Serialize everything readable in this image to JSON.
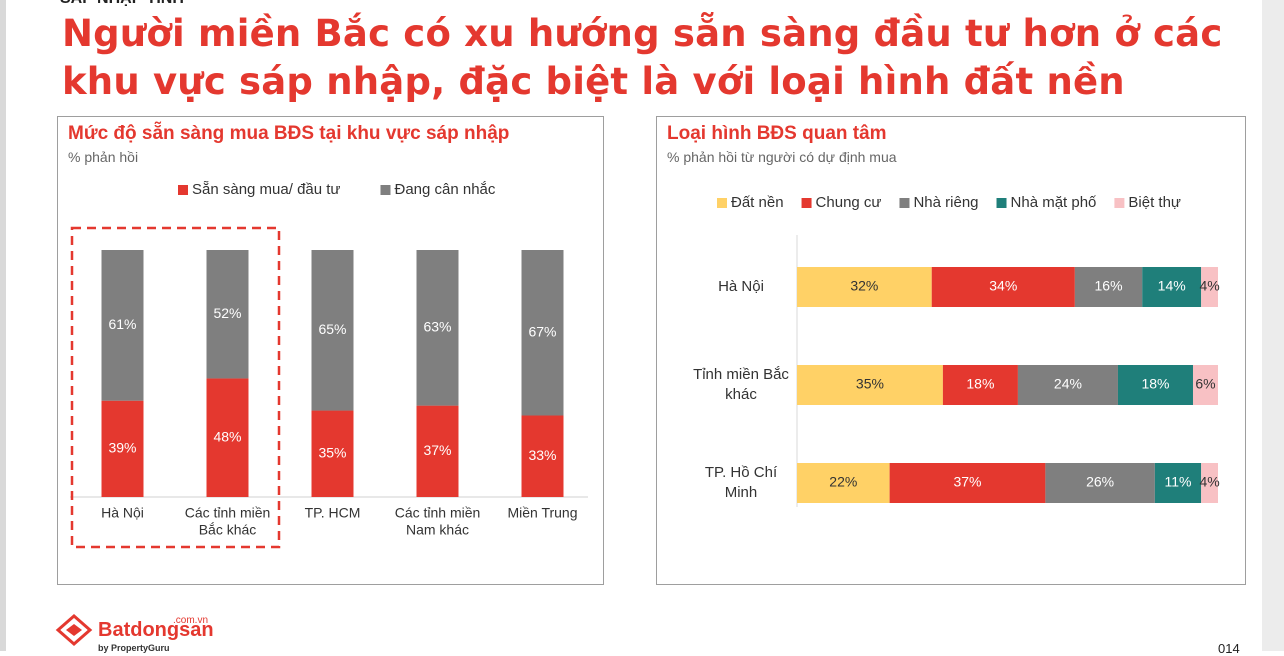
{
  "header": {
    "top_cut_text": "SÁP NHẬP TỈNH",
    "headline": "Người miền Bắc có xu hướng sẵn sàng đầu tư hơn ở các khu vực sáp nhập, đặc biệt là với loại hình đất nền"
  },
  "chart_data": [
    {
      "type": "bar",
      "stacked": true,
      "orientation": "vertical",
      "title": "Mức độ sẵn sàng mua BĐS tại khu vực sáp nhập",
      "subtitle": "% phản hồi",
      "legend_position": "top",
      "categories": [
        [
          "Hà Nội"
        ],
        [
          "Các tỉnh miền",
          "Bắc khác"
        ],
        [
          "TP. HCM"
        ],
        [
          "Các tỉnh miền",
          "Nam khác"
        ],
        [
          "Miền Trung"
        ]
      ],
      "series": [
        {
          "name": "Sẵn sàng mua/ đầu tư",
          "color": "#e4382f",
          "label_color": "#ffffff",
          "values": [
            39,
            48,
            35,
            37,
            33
          ]
        },
        {
          "name": "Đang cân nhắc",
          "color": "#7f7f7f",
          "label_color": "#ffffff",
          "values": [
            61,
            52,
            65,
            63,
            67
          ]
        }
      ],
      "value_suffix": "%",
      "highlight_categories": [
        0,
        1
      ],
      "highlight_color": "#e4382f"
    },
    {
      "type": "bar",
      "stacked": true,
      "orientation": "horizontal",
      "title": "Loại hình BĐS quan tâm",
      "subtitle": "% phản hồi từ người có dự định mua",
      "legend_position": "top",
      "categories": [
        [
          "Hà Nội"
        ],
        [
          "Tỉnh miền Bắc",
          "khác"
        ],
        [
          "TP. Hồ Chí",
          "Minh"
        ]
      ],
      "series": [
        {
          "name": "Đất nền",
          "color": "#ffd166",
          "label_color": "#333333",
          "values": [
            32,
            35,
            22
          ]
        },
        {
          "name": "Chung cư",
          "color": "#e4382f",
          "label_color": "#ffffff",
          "values": [
            34,
            18,
            37
          ]
        },
        {
          "name": "Nhà riêng",
          "color": "#7f7f7f",
          "label_color": "#ffffff",
          "values": [
            16,
            24,
            26
          ]
        },
        {
          "name": "Nhà mặt phố",
          "color": "#1f7f7a",
          "label_color": "#ffffff",
          "values": [
            14,
            18,
            11
          ]
        },
        {
          "name": "Biệt thự",
          "color": "#f8c1c4",
          "label_color": "#333333",
          "values": [
            4,
            6,
            4
          ]
        }
      ],
      "value_suffix": "%"
    }
  ],
  "footer": {
    "logo_text": "Batdongsan",
    "logo_domain": ".com.vn",
    "logo_sub": "by PropertyGuru",
    "page_number": "014"
  }
}
